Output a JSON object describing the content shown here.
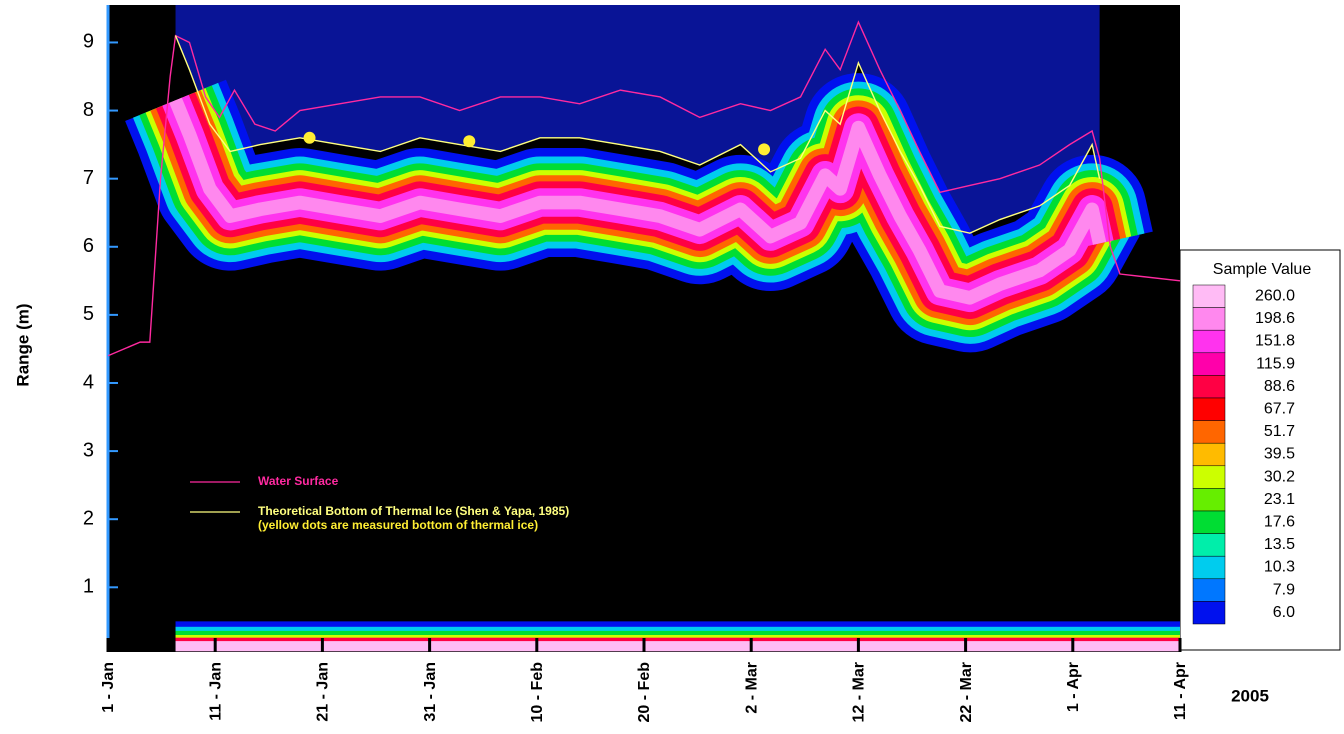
{
  "chart_data": {
    "type": "line",
    "y_label": "Range (m)",
    "year_label": "2005",
    "xlim": [
      0,
      100
    ],
    "xticks": [
      {
        "value": 0,
        "label": "1 - Jan"
      },
      {
        "value": 10,
        "label": "11 - Jan"
      },
      {
        "value": 20,
        "label": "21 - Jan"
      },
      {
        "value": 30,
        "label": "31 - Jan"
      },
      {
        "value": 40,
        "label": "10 - Feb"
      },
      {
        "value": 50,
        "label": "20 - Feb"
      },
      {
        "value": 60,
        "label": "2 - Mar"
      },
      {
        "value": 70,
        "label": "12 - Mar"
      },
      {
        "value": 80,
        "label": "22 - Mar"
      },
      {
        "value": 90,
        "label": "1 - Apr"
      },
      {
        "value": 100,
        "label": "11 - Apr"
      }
    ],
    "ylim": [
      0.05,
      9.55
    ],
    "yticks": [
      1,
      2,
      3,
      4,
      5,
      6,
      7,
      8,
      9
    ],
    "series": [
      {
        "name": "Water Surface",
        "color": "#ff2aa0",
        "x": [
          0,
          3.0,
          3.9,
          4.9,
          5.8,
          6.3,
          7.6,
          9.1,
          10.4,
          11.8,
          13.7,
          15.6,
          17.9,
          21.6,
          25.4,
          29.1,
          32.8,
          36.6,
          40.3,
          44.0,
          47.8,
          51.5,
          55.2,
          59.0,
          61.8,
          64.6,
          66.9,
          68.3,
          70.0,
          72.0,
          73.9,
          75.7,
          77.6,
          80.4,
          83.2,
          86.9,
          89.7,
          91.8,
          92.5,
          93.5,
          94.4,
          100
        ],
        "values": [
          4.4,
          4.6,
          4.6,
          7.0,
          8.5,
          9.1,
          9.0,
          8.2,
          7.9,
          8.3,
          7.8,
          7.7,
          8.0,
          8.1,
          8.2,
          8.2,
          8.0,
          8.2,
          8.2,
          8.1,
          8.3,
          8.2,
          7.9,
          8.1,
          8.0,
          8.2,
          8.9,
          8.6,
          9.3,
          8.6,
          8.0,
          7.4,
          6.8,
          6.9,
          7.0,
          7.2,
          7.5,
          7.7,
          7.3,
          6.0,
          5.6,
          5.5
        ]
      },
      {
        "name": "Theoretical Bottom of Thermal Ice (Shen & Yapa, 1985)",
        "color": "#ffff80",
        "x": [
          6.3,
          7.6,
          9.5,
          11.4,
          14.2,
          17.9,
          21.6,
          25.4,
          29.1,
          32.8,
          36.6,
          40.3,
          44.0,
          47.8,
          51.5,
          55.2,
          59.0,
          61.8,
          64.6,
          66.9,
          68.3,
          70.0,
          72.0,
          73.9,
          75.7,
          77.6,
          80.4,
          83.2,
          86.9,
          89.7,
          91.8,
          92.5
        ],
        "values": [
          9.1,
          8.6,
          7.8,
          7.4,
          7.5,
          7.6,
          7.5,
          7.4,
          7.6,
          7.5,
          7.4,
          7.6,
          7.6,
          7.5,
          7.4,
          7.2,
          7.5,
          7.1,
          7.3,
          8.0,
          7.8,
          8.7,
          8.0,
          7.4,
          6.9,
          6.3,
          6.2,
          6.4,
          6.6,
          6.9,
          7.5,
          7.0
        ]
      }
    ],
    "points": {
      "name": "(yellow dots are measured bottom of thermal ice)",
      "color": "#ffee33",
      "x": [
        18.8,
        33.7,
        61.2
      ],
      "values": [
        7.6,
        7.55,
        7.43
      ]
    },
    "colorbar": {
      "title": "Sample Value",
      "ticks": [
        {
          "value": 260,
          "label": "260.0"
        },
        {
          "value": 198.6,
          "label": "198.6"
        },
        {
          "value": 151.8,
          "label": "151.8"
        },
        {
          "value": 115.9,
          "label": "115.9"
        },
        {
          "value": 88.6,
          "label": "88.6"
        },
        {
          "value": 67.7,
          "label": "67.7"
        },
        {
          "value": 51.7,
          "label": "51.7"
        },
        {
          "value": 39.5,
          "label": "39.5"
        },
        {
          "value": 30.2,
          "label": "30.2"
        },
        {
          "value": 23.1,
          "label": "23.1"
        },
        {
          "value": 17.6,
          "label": "17.6"
        },
        {
          "value": 13.5,
          "label": "13.5"
        },
        {
          "value": 10.3,
          "label": "10.3"
        },
        {
          "value": 7.9,
          "label": "7.9"
        },
        {
          "value": 6,
          "label": "6.0"
        }
      ],
      "colors": [
        "#ffbbf5",
        "#ff88ee",
        "#ff33ee",
        "#ff00aa",
        "#ff0044",
        "#ff0000",
        "#ff6600",
        "#ffbb00",
        "#ccff00",
        "#66ee00",
        "#00dd33",
        "#00eeaa",
        "#00ccee",
        "#0077ff",
        "#0011ee"
      ]
    }
  }
}
